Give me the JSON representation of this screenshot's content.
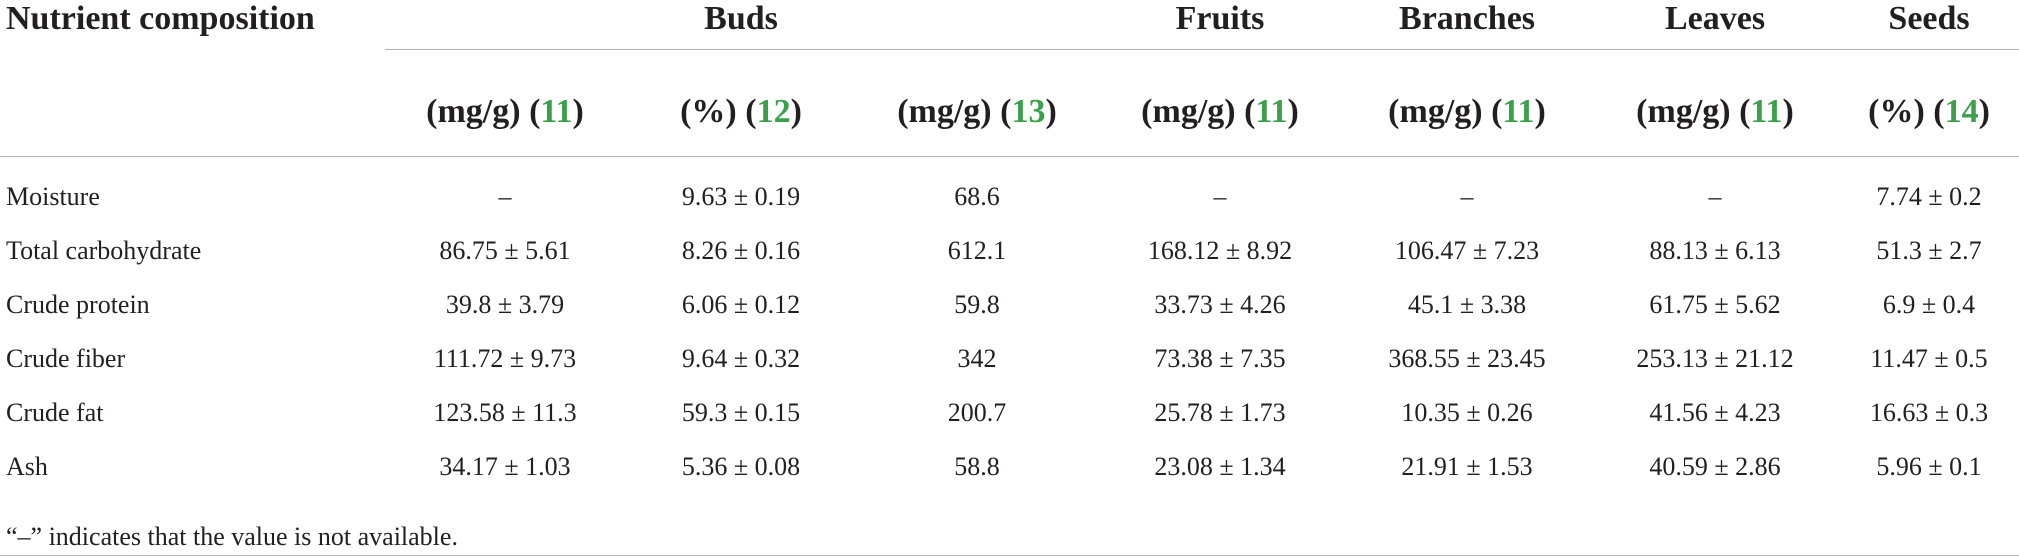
{
  "table": {
    "first_col_header": "Nutrient composition",
    "groups": [
      "Buds",
      "Fruits",
      "Branches",
      "Leaves",
      "Seeds"
    ],
    "subheaders": [
      {
        "unit": "(mg/g)",
        "ref": "11"
      },
      {
        "unit": "(%)",
        "ref": "12"
      },
      {
        "unit": "(mg/g)",
        "ref": "13"
      },
      {
        "unit": "(mg/g)",
        "ref": "11"
      },
      {
        "unit": "(mg/g)",
        "ref": "11"
      },
      {
        "unit": "(mg/g)",
        "ref": "11"
      },
      {
        "unit": "(%)",
        "ref": "14"
      }
    ],
    "rows": [
      {
        "label": "Moisture",
        "cells": [
          "–",
          "9.63 ± 0.19",
          "68.6",
          "–",
          "–",
          "–",
          "7.74 ± 0.2"
        ]
      },
      {
        "label": "Total carbohydrate",
        "cells": [
          "86.75 ± 5.61",
          "8.26 ± 0.16",
          "612.1",
          "168.12 ± 8.92",
          "106.47 ± 7.23",
          "88.13 ± 6.13",
          "51.3 ± 2.7"
        ]
      },
      {
        "label": "Crude protein",
        "cells": [
          "39.8 ± 3.79",
          "6.06 ± 0.12",
          "59.8",
          "33.73 ± 4.26",
          "45.1 ± 3.38",
          "61.75 ± 5.62",
          "6.9 ± 0.4"
        ]
      },
      {
        "label": "Crude fiber",
        "cells": [
          "111.72 ± 9.73",
          "9.64 ± 0.32",
          "342",
          "73.38 ± 7.35",
          "368.55 ± 23.45",
          "253.13 ± 21.12",
          "11.47 ± 0.5"
        ]
      },
      {
        "label": "Crude fat",
        "cells": [
          "123.58 ± 11.3",
          "59.3 ± 0.15",
          "200.7",
          "25.78 ± 1.73",
          "10.35 ± 0.26",
          "41.56 ± 4.23",
          "16.63 ± 0.3"
        ]
      },
      {
        "label": "Ash",
        "cells": [
          "34.17 ± 1.03",
          "5.36 ± 0.08",
          "58.8",
          "23.08 ± 1.34",
          "21.91 ± 1.53",
          "40.59 ± 2.86",
          "5.96 ± 0.1"
        ]
      }
    ]
  },
  "footnote": "“–” indicates that the value is not available."
}
